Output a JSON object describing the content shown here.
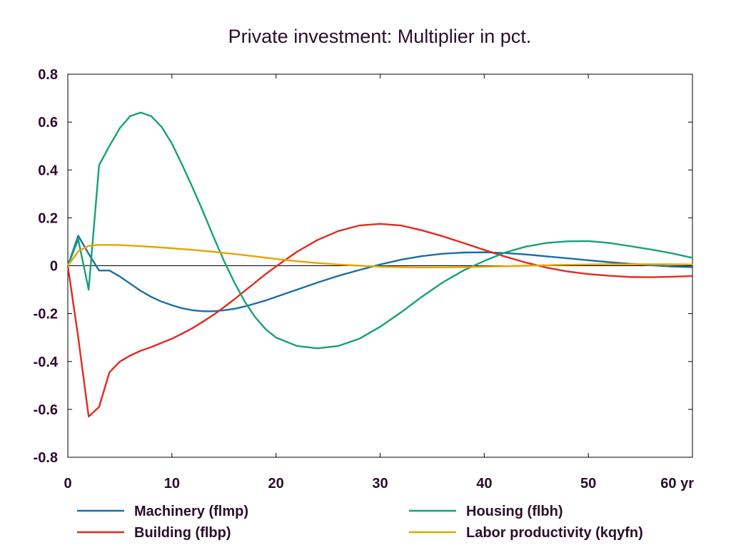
{
  "chart_data": {
    "type": "line",
    "title": "Private investment: Multiplier in pct.",
    "xlabel": "",
    "ylabel": "",
    "xlim": [
      0,
      60
    ],
    "ylim": [
      -0.8,
      0.8
    ],
    "x_ticks": [
      0,
      10,
      20,
      30,
      40,
      50,
      60
    ],
    "x_tick_labels": [
      "0",
      "10",
      "20",
      "30",
      "40",
      "50",
      "60 yr"
    ],
    "y_ticks": [
      0.8,
      0.6,
      0.4,
      0.2,
      0,
      -0.2,
      -0.4,
      -0.6,
      -0.8
    ],
    "y_tick_labels": [
      "0.8",
      "0.6",
      "0.4",
      "0.2",
      "0",
      "-0.2",
      "-0.4",
      "-0.6",
      "-0.8"
    ],
    "grid": false,
    "zero_line": true,
    "legend_position": "bottom",
    "series": [
      {
        "name": "Machinery (flmp)",
        "color": "#1a6fa6",
        "points": [
          [
            0,
            0
          ],
          [
            1,
            0.125
          ],
          [
            2,
            0.05
          ],
          [
            3,
            -0.02
          ],
          [
            4,
            -0.02
          ],
          [
            5,
            -0.045
          ],
          [
            6,
            -0.075
          ],
          [
            7,
            -0.105
          ],
          [
            8,
            -0.13
          ],
          [
            9,
            -0.15
          ],
          [
            10,
            -0.165
          ],
          [
            11,
            -0.178
          ],
          [
            12,
            -0.186
          ],
          [
            13,
            -0.19
          ],
          [
            14,
            -0.19
          ],
          [
            15,
            -0.186
          ],
          [
            16,
            -0.18
          ],
          [
            17,
            -0.17
          ],
          [
            18,
            -0.158
          ],
          [
            19,
            -0.145
          ],
          [
            20,
            -0.13
          ],
          [
            22,
            -0.1
          ],
          [
            24,
            -0.07
          ],
          [
            26,
            -0.042
          ],
          [
            28,
            -0.018
          ],
          [
            30,
            0.005
          ],
          [
            32,
            0.025
          ],
          [
            34,
            0.04
          ],
          [
            36,
            0.05
          ],
          [
            38,
            0.055
          ],
          [
            40,
            0.056
          ],
          [
            42,
            0.053
          ],
          [
            44,
            0.047
          ],
          [
            46,
            0.039
          ],
          [
            48,
            0.031
          ],
          [
            50,
            0.023
          ],
          [
            52,
            0.015
          ],
          [
            54,
            0.008
          ],
          [
            56,
            0.002
          ],
          [
            58,
            -0.003
          ],
          [
            60,
            -0.006
          ]
        ]
      },
      {
        "name": "Building (flbp)",
        "color": "#e02b20",
        "points": [
          [
            0,
            0
          ],
          [
            1,
            -0.3
          ],
          [
            2,
            -0.63
          ],
          [
            3,
            -0.59
          ],
          [
            4,
            -0.445
          ],
          [
            5,
            -0.4
          ],
          [
            6,
            -0.375
          ],
          [
            7,
            -0.355
          ],
          [
            8,
            -0.34
          ],
          [
            9,
            -0.322
          ],
          [
            10,
            -0.305
          ],
          [
            11,
            -0.283
          ],
          [
            12,
            -0.26
          ],
          [
            13,
            -0.233
          ],
          [
            14,
            -0.205
          ],
          [
            15,
            -0.173
          ],
          [
            16,
            -0.14
          ],
          [
            17,
            -0.105
          ],
          [
            18,
            -0.07
          ],
          [
            19,
            -0.035
          ],
          [
            20,
            -0.003
          ],
          [
            22,
            0.058
          ],
          [
            24,
            0.108
          ],
          [
            26,
            0.145
          ],
          [
            28,
            0.168
          ],
          [
            30,
            0.175
          ],
          [
            32,
            0.168
          ],
          [
            34,
            0.148
          ],
          [
            36,
            0.123
          ],
          [
            38,
            0.095
          ],
          [
            40,
            0.066
          ],
          [
            42,
            0.038
          ],
          [
            44,
            0.013
          ],
          [
            46,
            -0.008
          ],
          [
            48,
            -0.024
          ],
          [
            50,
            -0.035
          ],
          [
            52,
            -0.042
          ],
          [
            54,
            -0.047
          ],
          [
            56,
            -0.048
          ],
          [
            58,
            -0.046
          ],
          [
            60,
            -0.043
          ]
        ]
      },
      {
        "name": "Housing (flbh)",
        "color": "#17a07a",
        "points": [
          [
            0,
            0
          ],
          [
            1,
            0.11
          ],
          [
            2,
            -0.1
          ],
          [
            3,
            0.42
          ],
          [
            4,
            0.5
          ],
          [
            5,
            0.575
          ],
          [
            6,
            0.625
          ],
          [
            7,
            0.64
          ],
          [
            8,
            0.625
          ],
          [
            9,
            0.58
          ],
          [
            10,
            0.51
          ],
          [
            11,
            0.42
          ],
          [
            12,
            0.325
          ],
          [
            13,
            0.225
          ],
          [
            14,
            0.12
          ],
          [
            15,
            0.02
          ],
          [
            16,
            -0.07
          ],
          [
            17,
            -0.15
          ],
          [
            18,
            -0.215
          ],
          [
            19,
            -0.265
          ],
          [
            20,
            -0.3
          ],
          [
            22,
            -0.335
          ],
          [
            24,
            -0.345
          ],
          [
            26,
            -0.335
          ],
          [
            28,
            -0.305
          ],
          [
            30,
            -0.255
          ],
          [
            32,
            -0.195
          ],
          [
            34,
            -0.13
          ],
          [
            36,
            -0.07
          ],
          [
            38,
            -0.02
          ],
          [
            40,
            0.02
          ],
          [
            42,
            0.055
          ],
          [
            44,
            0.08
          ],
          [
            46,
            0.095
          ],
          [
            48,
            0.102
          ],
          [
            50,
            0.103
          ],
          [
            52,
            0.095
          ],
          [
            54,
            0.082
          ],
          [
            56,
            0.068
          ],
          [
            58,
            0.052
          ],
          [
            60,
            0.033
          ]
        ]
      },
      {
        "name": "Labor productivity (kqyfn)",
        "color": "#e6a400",
        "points": [
          [
            0,
            0
          ],
          [
            1,
            0.06
          ],
          [
            2,
            0.083
          ],
          [
            3,
            0.087
          ],
          [
            4,
            0.087
          ],
          [
            5,
            0.086
          ],
          [
            6,
            0.084
          ],
          [
            7,
            0.082
          ],
          [
            8,
            0.079
          ],
          [
            9,
            0.076
          ],
          [
            10,
            0.073
          ],
          [
            12,
            0.066
          ],
          [
            14,
            0.058
          ],
          [
            16,
            0.049
          ],
          [
            18,
            0.039
          ],
          [
            20,
            0.028
          ],
          [
            22,
            0.019
          ],
          [
            24,
            0.011
          ],
          [
            26,
            0.005
          ],
          [
            28,
            0.0
          ],
          [
            30,
            -0.004
          ],
          [
            32,
            -0.006
          ],
          [
            34,
            -0.007
          ],
          [
            36,
            -0.007
          ],
          [
            38,
            -0.006
          ],
          [
            40,
            -0.004
          ],
          [
            42,
            -0.002
          ],
          [
            44,
            0.0
          ],
          [
            46,
            0.002
          ],
          [
            48,
            0.004
          ],
          [
            50,
            0.005
          ],
          [
            52,
            0.006
          ],
          [
            54,
            0.006
          ],
          [
            56,
            0.006
          ],
          [
            58,
            0.006
          ],
          [
            60,
            0.005
          ]
        ]
      }
    ]
  }
}
